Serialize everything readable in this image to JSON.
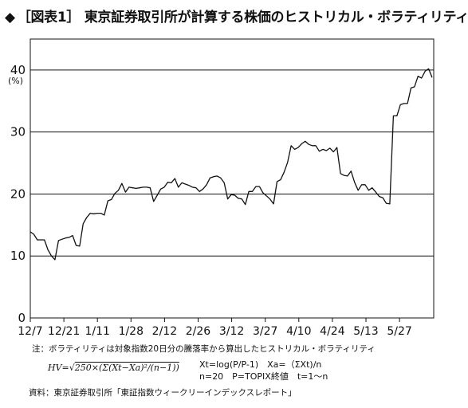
{
  "title": {
    "mark": "◆",
    "text": "［図表1］ 東京証券取引所が計算する株価のヒストリカル・ボラティリティ"
  },
  "chart_data": {
    "type": "line",
    "ylabel": "(%)",
    "ylim": [
      0,
      45
    ],
    "yticks": [
      0,
      10,
      20,
      30,
      40
    ],
    "grid": true,
    "x_ticks": [
      "12/7",
      "12/21",
      "1/11",
      "1/28",
      "2/12",
      "2/26",
      "3/12",
      "3/27",
      "4/10",
      "4/24",
      "5/13",
      "5/27"
    ],
    "series": [
      {
        "values": [
          13.9,
          13.5,
          12.6,
          12.6,
          12.6,
          11.0,
          10.0,
          9.4,
          12.5,
          12.7,
          12.9,
          13.0,
          13.3,
          11.7,
          11.6,
          15.2,
          16.2,
          16.9,
          16.8,
          16.9,
          16.9,
          16.6,
          18.9,
          19.1,
          20.1,
          20.6,
          21.7,
          20.3,
          21.1,
          21.0,
          20.9,
          21.0,
          21.1,
          21.1,
          21.0,
          18.8,
          19.8,
          20.8,
          21.1,
          21.9,
          21.8,
          22.5,
          21.1,
          21.8,
          21.6,
          21.4,
          21.1,
          21.0,
          20.4,
          20.8,
          21.5,
          22.6,
          22.8,
          22.9,
          22.6,
          21.8,
          19.2,
          19.9,
          19.8,
          19.3,
          19.2,
          18.3,
          20.4,
          20.4,
          21.2,
          21.2,
          20.2,
          19.7,
          19.2,
          18.4,
          22.0,
          22.3,
          23.5,
          25.1,
          27.8,
          27.2,
          27.5,
          28.1,
          28.5,
          28.0,
          27.8,
          27.8,
          26.9,
          27.2,
          27.0,
          27.4,
          26.8,
          27.5,
          23.3,
          23.0,
          22.9,
          23.7,
          21.9,
          20.6,
          21.5,
          21.5,
          20.6,
          21.0,
          20.3,
          19.6,
          19.4,
          18.5,
          18.4,
          32.6,
          32.6,
          34.4,
          34.6,
          34.6,
          37.1,
          37.3,
          39.0,
          38.7,
          39.8,
          40.2,
          38.8
        ]
      }
    ]
  },
  "notes": {
    "line1": "注：ボラティリティは対象指数20日分の騰落率から算出したヒストリカル・ボラティリティ",
    "formula_lhs": "HV=",
    "formula_rhs": "250×(Σ(Xt−Xa)²/(n−1))",
    "defs_line1": "Xt=log(P/P-1)　Xa=（ΣXt)/n",
    "defs_line2": "n=20　P=TOPIX終値　t=1〜n"
  },
  "source": "資料：東京証券取引所「東証指数ウィークリーインデックスレポート」"
}
